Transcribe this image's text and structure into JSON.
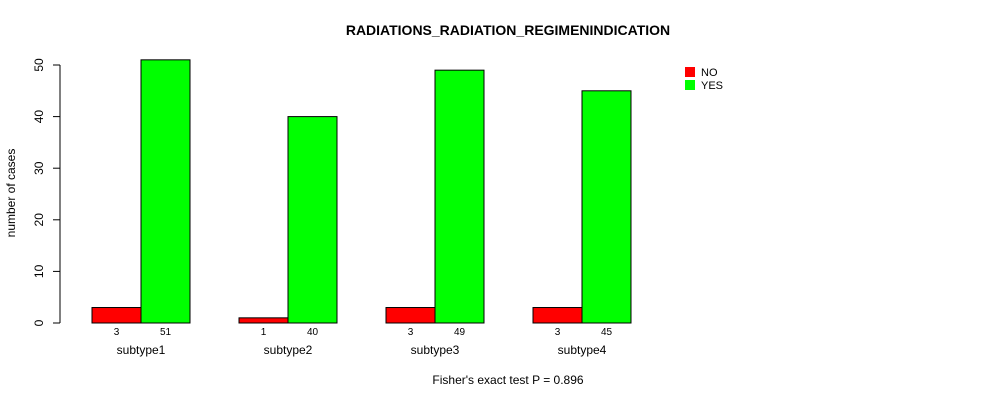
{
  "chart_data": {
    "type": "bar",
    "title": "RADIATIONS_RADIATION_REGIMENINDICATION",
    "ylabel": "number of cases",
    "xlabel": "",
    "footnote": "Fisher's exact test P = 0.896",
    "categories": [
      "subtype1",
      "subtype2",
      "subtype3",
      "subtype4"
    ],
    "series": [
      {
        "name": "NO",
        "color": "#ff0000",
        "values": [
          3,
          1,
          3,
          3
        ]
      },
      {
        "name": "YES",
        "color": "#00ff00",
        "values": [
          51,
          40,
          49,
          45
        ]
      }
    ],
    "ylim": [
      0,
      50
    ],
    "yticks": [
      0,
      10,
      20,
      30,
      40,
      50
    ],
    "legend_position": "top-right",
    "grid": false
  }
}
